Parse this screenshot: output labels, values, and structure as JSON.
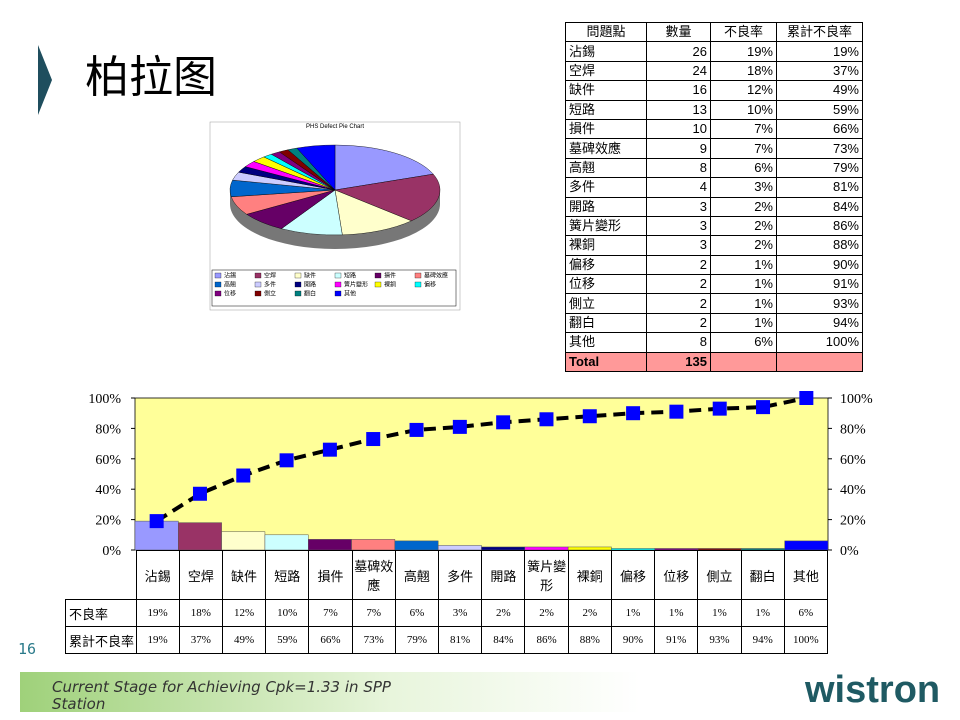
{
  "slide": {
    "title": "柏拉图",
    "page_number": "16",
    "footer": "Current Stage for Achieving Cpk=1.33 in SPP Station",
    "logo": "wistron"
  },
  "table": {
    "header": [
      "問題點",
      "數量",
      "不良率",
      "累計不良率"
    ],
    "rows": [
      [
        "沾錫",
        26,
        "19%",
        "19%"
      ],
      [
        "空焊",
        24,
        "18%",
        "37%"
      ],
      [
        "缺件",
        16,
        "12%",
        "49%"
      ],
      [
        "短路",
        13,
        "10%",
        "59%"
      ],
      [
        "損件",
        10,
        "7%",
        "66%"
      ],
      [
        "墓碑效應",
        9,
        "7%",
        "73%"
      ],
      [
        "高翹",
        8,
        "6%",
        "79%"
      ],
      [
        "多件",
        4,
        "3%",
        "81%"
      ],
      [
        "開路",
        3,
        "2%",
        "84%"
      ],
      [
        "簧片變形",
        3,
        "2%",
        "86%"
      ],
      [
        "裸銅",
        3,
        "2%",
        "88%"
      ],
      [
        "偏移",
        2,
        "1%",
        "90%"
      ],
      [
        "位移",
        2,
        "1%",
        "91%"
      ],
      [
        "側立",
        2,
        "1%",
        "93%"
      ],
      [
        "翻白",
        2,
        "1%",
        "94%"
      ],
      [
        "其他",
        8,
        "6%",
        "100%"
      ]
    ],
    "total": [
      "Total",
      135
    ]
  },
  "chart_data": [
    {
      "type": "pie",
      "title": "PHS Defect Pie Chart",
      "categories": [
        "沾錫",
        "空焊",
        "缺件",
        "短路",
        "損件",
        "墓碑效應",
        "高翹",
        "多件",
        "開路",
        "簧片變形",
        "裸銅",
        "偏移",
        "位移",
        "側立",
        "翻白",
        "其他"
      ],
      "values": [
        26,
        24,
        16,
        13,
        10,
        9,
        8,
        4,
        3,
        3,
        3,
        2,
        2,
        2,
        2,
        8
      ],
      "colors": [
        "#9999ff",
        "#993366",
        "#ffffcc",
        "#ccffff",
        "#660066",
        "#ff8080",
        "#0066cc",
        "#ccccff",
        "#000080",
        "#ff00ff",
        "#ffff00",
        "#00ffff",
        "#800080",
        "#800000",
        "#008080",
        "#0000ff"
      ]
    },
    {
      "type": "pareto",
      "categories": [
        "沾錫",
        "空焊",
        "缺件",
        "短路",
        "損件",
        "墓碑效應",
        "高翹",
        "多件",
        "開路",
        "簧片變形",
        "裸銅",
        "偏移",
        "位移",
        "側立",
        "翻白",
        "其他"
      ],
      "series": [
        {
          "name": "不良率",
          "type": "bar",
          "colors": [
            "#9999ff",
            "#993366",
            "#ffffcc",
            "#ccffff",
            "#660066",
            "#ff8080",
            "#0066cc",
            "#ccccff",
            "#000080",
            "#ff00ff",
            "#ffff00",
            "#00ffff",
            "#800080",
            "#800000",
            "#008080",
            "#0000ff"
          ],
          "values": [
            19,
            18,
            12,
            10,
            7,
            7,
            6,
            3,
            2,
            2,
            2,
            1,
            1,
            1,
            1,
            6
          ],
          "value_labels": [
            "19%",
            "18%",
            "12%",
            "10%",
            "7%",
            "7%",
            "6%",
            "3%",
            "2%",
            "2%",
            "2%",
            "1%",
            "1%",
            "1%",
            "1%",
            "6%"
          ]
        },
        {
          "name": "累計不良率",
          "type": "line",
          "color": "#0000ff",
          "axis": "y2",
          "values": [
            19,
            37,
            49,
            59,
            66,
            73,
            79,
            81,
            84,
            86,
            88,
            90,
            91,
            93,
            94,
            100
          ],
          "value_labels": [
            "19%",
            "37%",
            "49%",
            "59%",
            "66%",
            "73%",
            "79%",
            "81%",
            "84%",
            "86%",
            "88%",
            "90%",
            "91%",
            "93%",
            "94%",
            "100%"
          ]
        }
      ],
      "ylim": [
        0,
        100
      ],
      "yticks": [
        {
          "value": 0,
          "label": "0%"
        },
        {
          "value": 20,
          "label": "20%"
        },
        {
          "value": 40,
          "label": "40%"
        },
        {
          "value": 60,
          "label": "60%"
        },
        {
          "value": 80,
          "label": "80%"
        },
        {
          "value": 100,
          "label": "100%"
        }
      ],
      "y2lim": [
        0,
        100
      ],
      "y2ticks": [
        {
          "value": 0,
          "label": "0%"
        },
        {
          "value": 20,
          "label": "20%"
        },
        {
          "value": 40,
          "label": "40%"
        },
        {
          "value": 60,
          "label": "60%"
        },
        {
          "value": 80,
          "label": "80%"
        },
        {
          "value": 100,
          "label": "100%"
        }
      ],
      "background": "#ffff99"
    }
  ]
}
